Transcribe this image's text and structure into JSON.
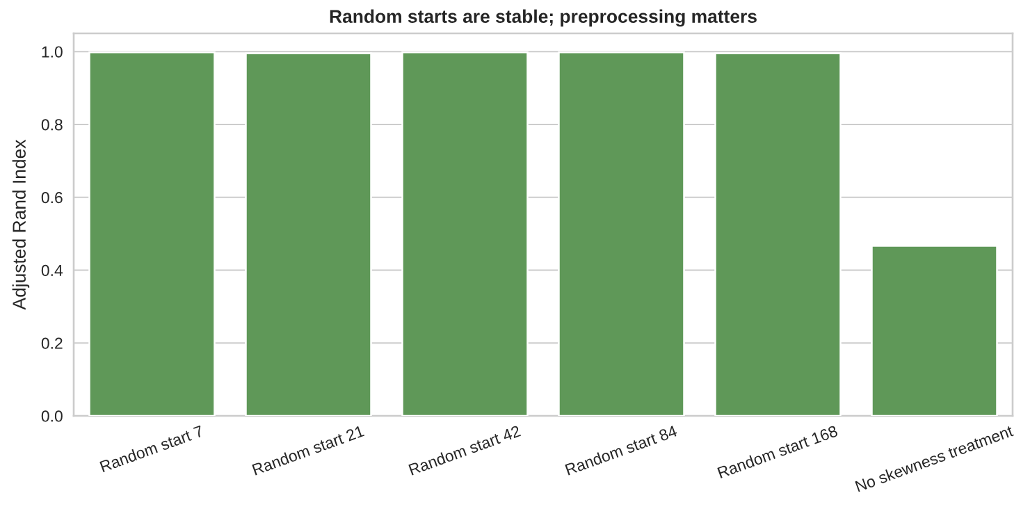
{
  "chart_data": {
    "type": "bar",
    "title": "Random starts are stable; preprocessing matters",
    "ylabel": "Adjusted Rand Index",
    "categories": [
      "Random start 7",
      "Random start 21",
      "Random start 42",
      "Random start 84",
      "Random start 168",
      "No skewness treatment"
    ],
    "values": [
      0.998,
      0.995,
      0.998,
      0.998,
      0.995,
      0.467
    ],
    "color": "#5f9858",
    "ylim": [
      0,
      1.05
    ],
    "yticks": [
      {
        "value": 0,
        "label": "0.0"
      },
      {
        "value": 0.2,
        "label": "0.2"
      },
      {
        "value": 0.4,
        "label": "0.4"
      },
      {
        "value": 0.6,
        "label": "0.6"
      },
      {
        "value": 0.8,
        "label": "0.8"
      },
      {
        "value": 1.0,
        "label": "1.0"
      }
    ],
    "grid": "y"
  }
}
